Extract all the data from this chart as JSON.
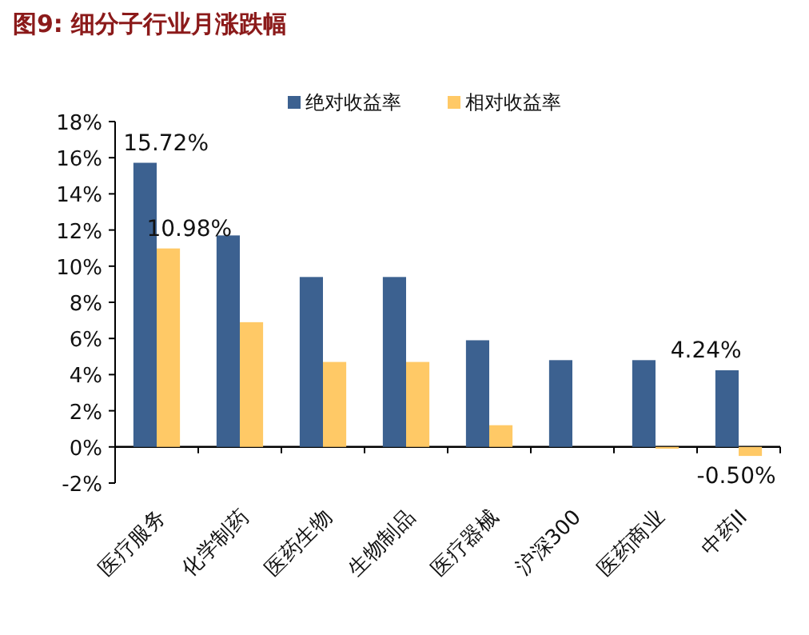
{
  "chart_data": {
    "type": "bar",
    "title": "图9: 细分子行业月涨跌幅",
    "categories": [
      "医疗服务",
      "化学制药",
      "医药生物",
      "生物制品",
      "医疗器械",
      "沪深300",
      "医药商业",
      "中药II"
    ],
    "series": [
      {
        "name": "绝对收益率",
        "color": "#3c6190",
        "values": [
          15.72,
          11.7,
          9.4,
          9.4,
          5.9,
          4.8,
          4.8,
          4.24
        ],
        "value_labels": [
          "15.72%",
          null,
          null,
          null,
          null,
          null,
          null,
          "4.24%"
        ]
      },
      {
        "name": "相对收益率",
        "color": "#ffc966",
        "values": [
          10.98,
          6.9,
          4.7,
          4.7,
          1.2,
          null,
          -0.1,
          -0.5
        ],
        "value_labels": [
          "10.98%",
          null,
          null,
          null,
          null,
          null,
          null,
          "-0.50%"
        ]
      }
    ],
    "ylim": [
      -2,
      18
    ],
    "yticks": [
      {
        "value": -2,
        "label": "-2%"
      },
      {
        "value": 0,
        "label": "0%"
      },
      {
        "value": 2,
        "label": "2%"
      },
      {
        "value": 4,
        "label": "4%"
      },
      {
        "value": 6,
        "label": "6%"
      },
      {
        "value": 8,
        "label": "8%"
      },
      {
        "value": 10,
        "label": "10%"
      },
      {
        "value": 12,
        "label": "12%"
      },
      {
        "value": 14,
        "label": "14%"
      },
      {
        "value": 16,
        "label": "16%"
      },
      {
        "value": 18,
        "label": "18%"
      }
    ],
    "legend": "top"
  }
}
